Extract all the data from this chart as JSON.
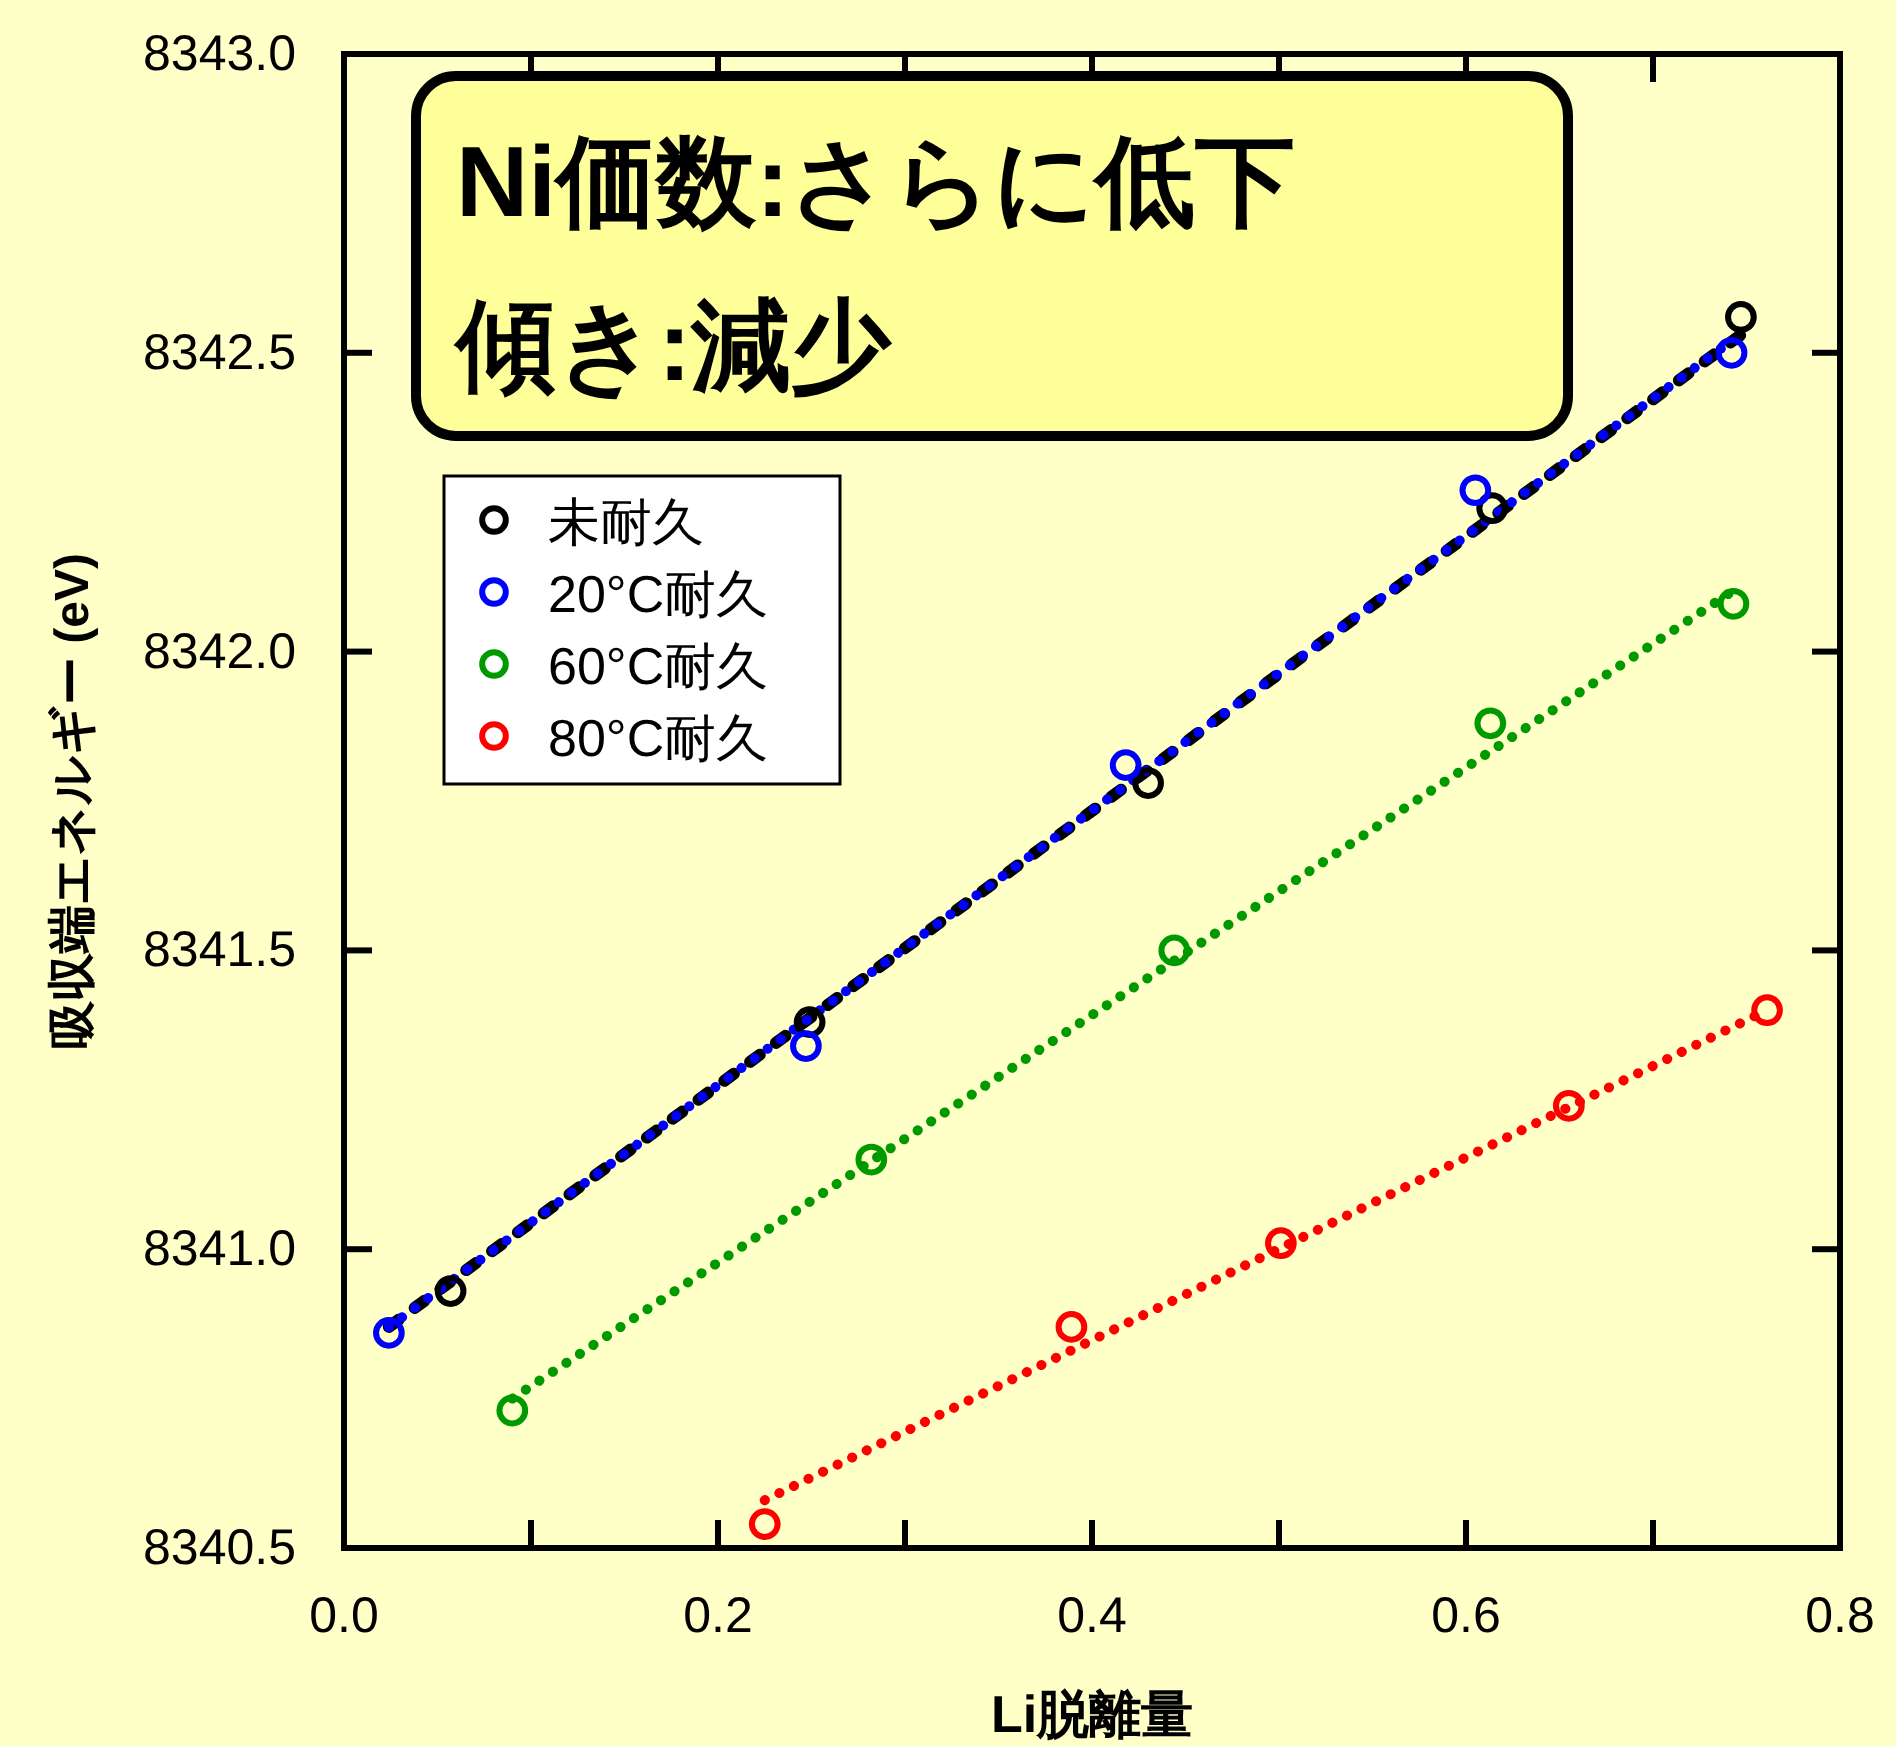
{
  "chart_data": {
    "type": "scatter",
    "xlabel": "Li脱離量",
    "ylabel": "吸収端エネルギー (eV)",
    "xlim": [
      0.0,
      0.8
    ],
    "ylim": [
      8340.5,
      8343.0
    ],
    "xticks": [
      {
        "value": 0.0,
        "label": "0.0"
      },
      {
        "value": 0.1,
        "label": null
      },
      0.2,
      {
        "value": 0.3,
        "label": null
      },
      0.4,
      {
        "value": 0.5,
        "label": null
      },
      0.6,
      {
        "value": 0.7,
        "label": null
      },
      0.8
    ],
    "yticks": [
      {
        "value": 8340.5,
        "label": "8340.5"
      },
      {
        "value": 8341.0,
        "label": "8341.0"
      },
      {
        "value": 8341.5,
        "label": "8341.5"
      },
      {
        "value": 8342.0,
        "label": "8342.0"
      },
      {
        "value": 8342.5,
        "label": "8342.5"
      },
      {
        "value": 8343.0,
        "label": "8343.0"
      }
    ],
    "grid": false,
    "legend": "top left",
    "marker": "circle",
    "annotations": [
      "Ni価数:さらに低下",
      "傾き:減少"
    ],
    "series": [
      {
        "type": "line",
        "marker": "none",
        "color": "#000000",
        "line_style": "dashed",
        "x": [
          0.024,
          0.747
        ],
        "values": [
          8340.87,
          8342.53
        ]
      },
      {
        "type": "line",
        "marker": "none",
        "color": "#0000ff",
        "line_style": "dotted",
        "x": [
          0.024,
          0.742
        ],
        "values": [
          8340.87,
          8342.52
        ]
      },
      {
        "type": "line",
        "marker": "none",
        "color": "#009900",
        "line_style": "dotted",
        "x": [
          0.09,
          0.742
        ],
        "values": [
          8340.75,
          8342.1
        ]
      },
      {
        "type": "line",
        "marker": "none",
        "color": "#ff0000",
        "line_style": "dotted",
        "x": [
          0.225,
          0.761
        ],
        "values": [
          8340.58,
          8341.4
        ]
      },
      {
        "name": "未耐久",
        "color": "#000000",
        "x": [
          0.057,
          0.249,
          0.43,
          0.614,
          0.747
        ],
        "values": [
          8340.93,
          8341.38,
          8341.78,
          8342.24,
          8342.56
        ]
      },
      {
        "name": "20°C耐久",
        "color": "#0000ff",
        "x": [
          0.024,
          0.247,
          0.418,
          0.605,
          0.742
        ],
        "values": [
          8340.86,
          8341.34,
          8341.81,
          8342.27,
          8342.5
        ]
      },
      {
        "name": "60°C耐久",
        "color": "#009900",
        "x": [
          0.09,
          0.282,
          0.444,
          0.613,
          0.743
        ],
        "values": [
          8340.73,
          8341.15,
          8341.5,
          8341.88,
          8342.08
        ]
      },
      {
        "name": "80°C耐久",
        "color": "#ff0000",
        "x": [
          0.225,
          0.389,
          0.501,
          0.655,
          0.761
        ],
        "values": [
          8340.54,
          8340.87,
          8341.01,
          8341.24,
          8341.4
        ]
      }
    ]
  }
}
